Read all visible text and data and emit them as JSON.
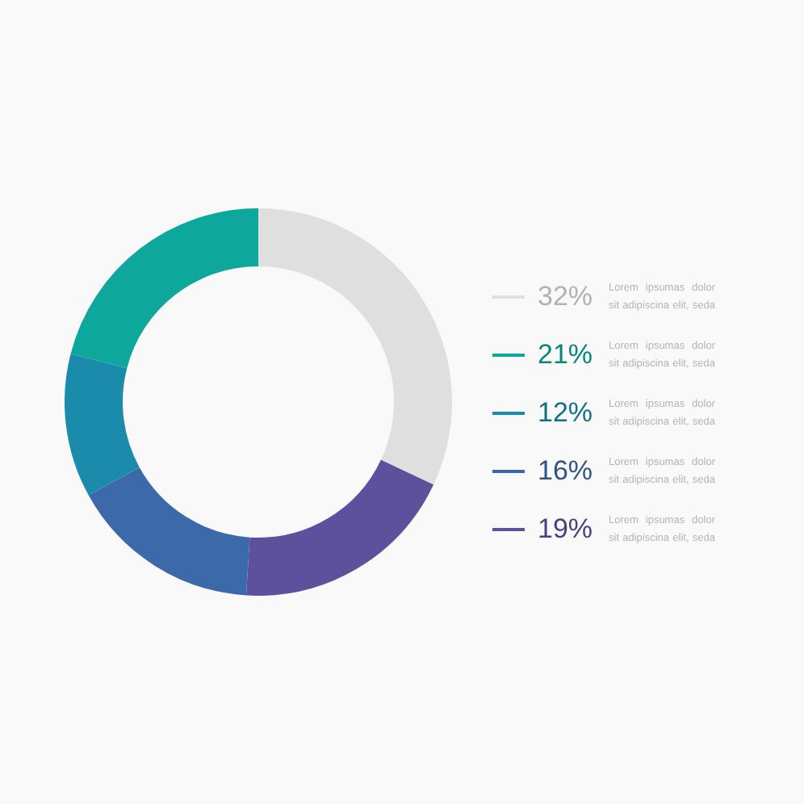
{
  "chart_data": {
    "type": "donut",
    "categories": [
      "32%",
      "21%",
      "12%",
      "16%",
      "19%"
    ],
    "values": [
      32,
      21,
      12,
      16,
      19
    ],
    "colors": [
      "#dfdfdf",
      "#0ea79b",
      "#1b8bab",
      "#3c69a9",
      "#5d519d"
    ],
    "annotations": [
      "Lorem ipsumas dolor sit adipiscina elit, seda",
      "Lorem ipsumas dolor sit adipiscina elit, seda",
      "Lorem ipsumas dolor sit adipiscina elit, seda",
      "Lorem ipsumas dolor sit adipiscina elit, seda",
      "Lorem ipsumas dolor sit adipiscina elit, seda"
    ],
    "legend": "right"
  }
}
